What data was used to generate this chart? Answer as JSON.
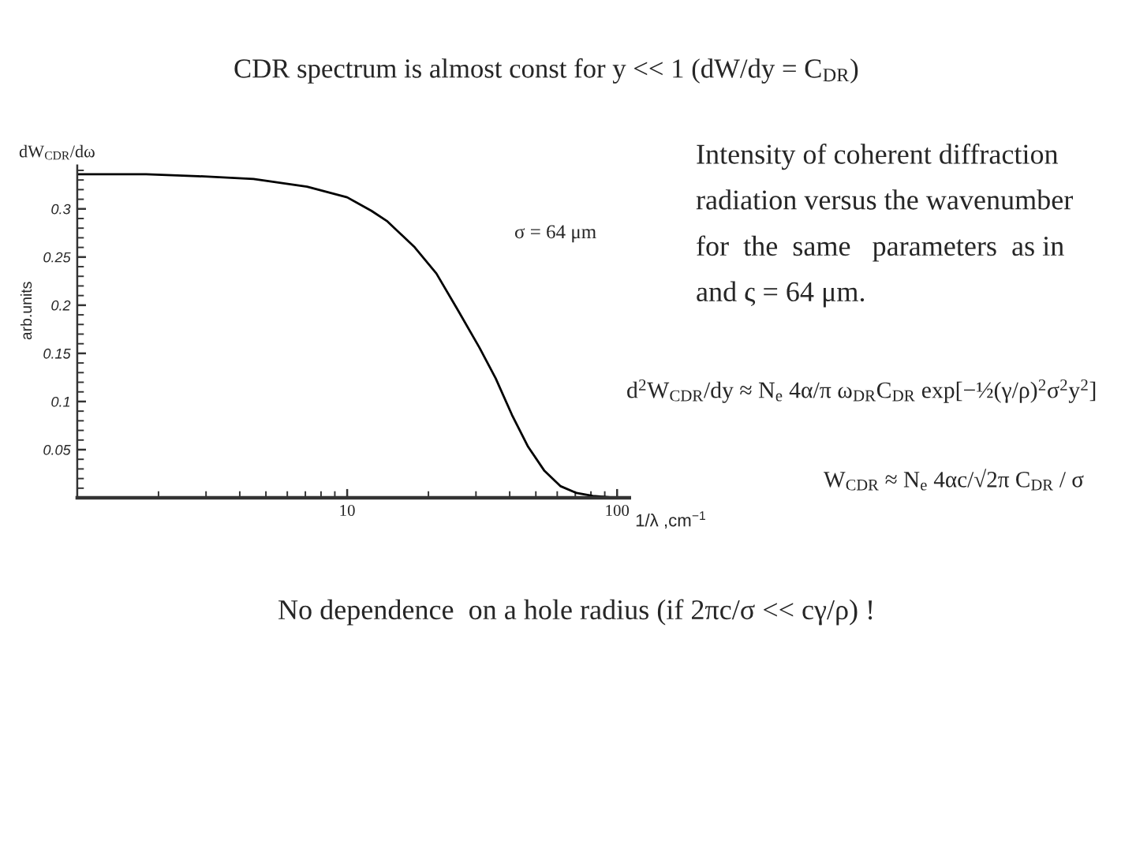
{
  "chart_data": {
    "type": "line",
    "title": "CDR spectrum is almost const for y << 1 (dW/dy = C$_{DR}$)",
    "ylabel": "arb.units",
    "xlabel": "1/λ ,cm$^{−1}$",
    "annotations": [
      "dW$_{CDR}$/dω",
      "σ = 64 μm",
      "Intensity of coherent diffraction\nradiation versus the wavenumber\nfor  the  same   parameters  as in\nand ς = 64 μm.",
      "d$^{2}$W$_{CDR}$/dy ≈ N$_{e}$ 4α/π ω$_{DR}$C$_{DR}$ exp[−½(γ/ρ)$^{2}$σ$^{2}$y$^{2}$]",
      "W$_{CDR}$ ≈ N$_{e}$ 4αc/√2π C$_{DR}$ / σ",
      "No dependence  on a hole radius (if 2πc/σ << cγ/ρ) !"
    ],
    "x": [
      1,
      1.8,
      2.8,
      4.5,
      7.1,
      10,
      12.3,
      14.1,
      17.8,
      21.4,
      25.7,
      30.9,
      35.5,
      40.8,
      46.8,
      53.8,
      61.8,
      70.8,
      81.3,
      100
    ],
    "values": [
      0.336,
      0.336,
      0.334,
      0.331,
      0.323,
      0.312,
      0.298,
      0.287,
      0.26,
      0.233,
      0.195,
      0.156,
      0.124,
      0.086,
      0.053,
      0.028,
      0.012,
      0.005,
      0.002,
      0
    ],
    "color": "#000000",
    "log": "x",
    "xlim": [
      1,
      111
    ],
    "ylim": [
      0,
      0.345
    ],
    "xticks": [
      {
        "value": 2,
        "label": null
      },
      {
        "value": 3,
        "label": null
      },
      {
        "value": 4,
        "label": null
      },
      {
        "value": 5,
        "label": null
      },
      {
        "value": 6,
        "label": null
      },
      {
        "value": 7,
        "label": null
      },
      {
        "value": 8,
        "label": null
      },
      {
        "value": 9,
        "label": null
      },
      10,
      {
        "value": 20,
        "label": null
      },
      {
        "value": 30,
        "label": null
      },
      {
        "value": 40,
        "label": null
      },
      {
        "value": 50,
        "label": null
      },
      {
        "value": 60,
        "label": null
      },
      {
        "value": 70,
        "label": null
      },
      {
        "value": 80,
        "label": null
      },
      {
        "value": 90,
        "label": null
      },
      100
    ],
    "yticks": [
      {
        "value": 0.01,
        "label": null
      },
      {
        "value": 0.02,
        "label": null
      },
      {
        "value": 0.03,
        "label": null
      },
      {
        "value": 0.04,
        "label": null
      },
      0.05,
      {
        "value": 0.06,
        "label": null
      },
      {
        "value": 0.07,
        "label": null
      },
      {
        "value": 0.08,
        "label": null
      },
      {
        "value": 0.09,
        "label": null
      },
      0.1,
      {
        "value": 0.11,
        "label": null
      },
      {
        "value": 0.12,
        "label": null
      },
      {
        "value": 0.13,
        "label": null
      },
      {
        "value": 0.14,
        "label": null
      },
      0.15,
      {
        "value": 0.16,
        "label": null
      },
      {
        "value": 0.17,
        "label": null
      },
      {
        "value": 0.18,
        "label": null
      },
      {
        "value": 0.19,
        "label": null
      },
      0.2,
      {
        "value": 0.21,
        "label": null
      },
      {
        "value": 0.22,
        "label": null
      },
      {
        "value": 0.23,
        "label": null
      },
      {
        "value": 0.24,
        "label": null
      },
      0.25,
      {
        "value": 0.26,
        "label": null
      },
      {
        "value": 0.27,
        "label": null
      },
      {
        "value": 0.28,
        "label": null
      },
      {
        "value": 0.29,
        "label": null
      },
      0.3,
      {
        "value": 0.31,
        "label": null
      },
      {
        "value": 0.32,
        "label": null
      },
      {
        "value": 0.33,
        "label": null
      },
      {
        "value": 0.34,
        "label": null
      }
    ]
  }
}
